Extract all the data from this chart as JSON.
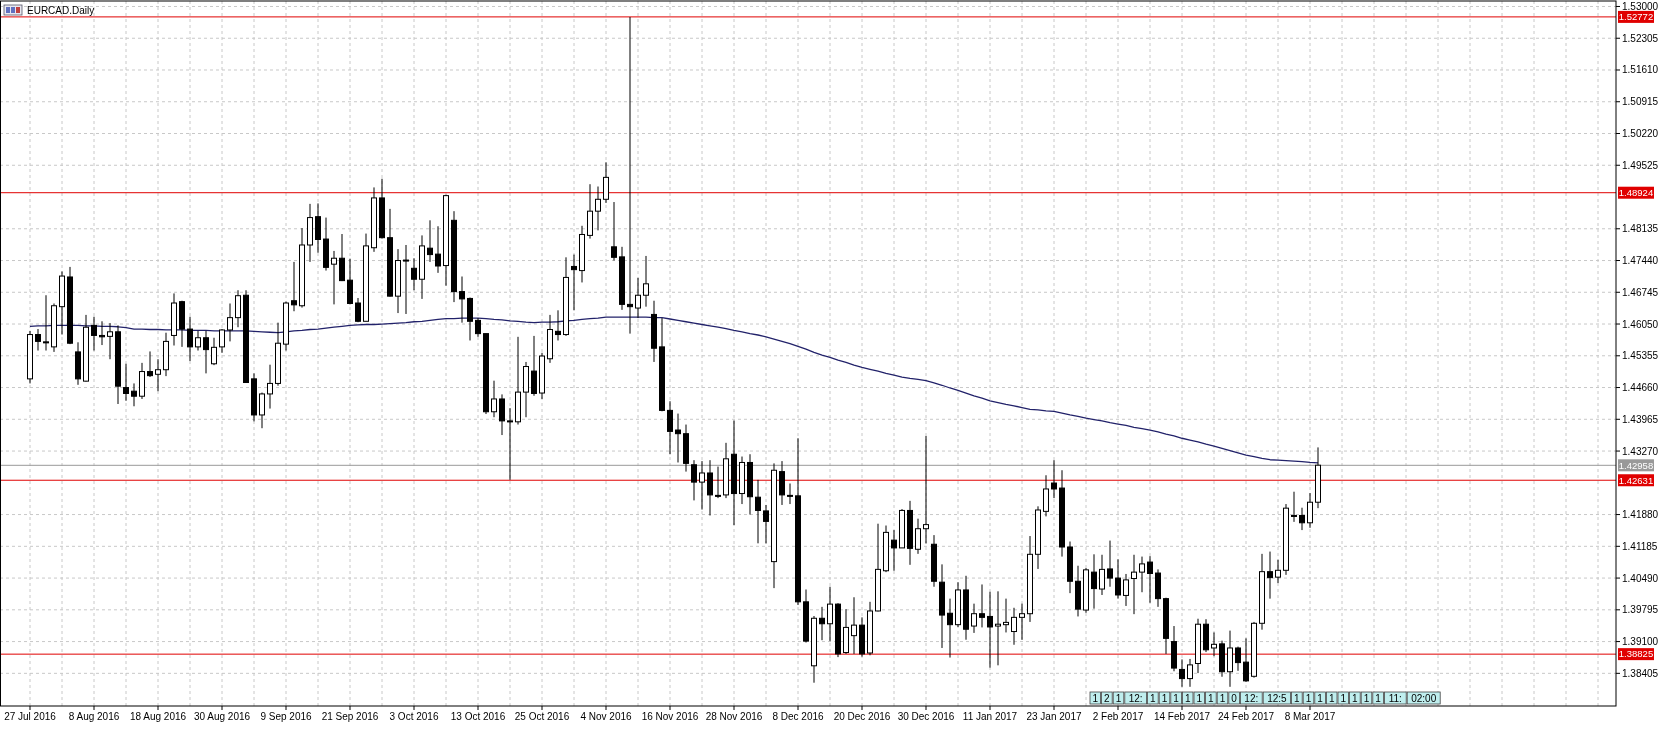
{
  "chart_data": {
    "type": "candlestick",
    "title": "EURCAD.Daily",
    "categories": [
      "27 Jul 2016",
      null,
      null,
      null,
      null,
      null,
      null,
      null,
      "8 Aug 2016",
      null,
      null,
      null,
      null,
      null,
      null,
      null,
      "18 Aug 2016",
      null,
      null,
      null,
      null,
      null,
      null,
      null,
      "30 Aug 2016",
      null,
      null,
      null,
      null,
      null,
      null,
      null,
      "9 Sep 2016",
      null,
      null,
      null,
      null,
      null,
      null,
      null,
      "21 Sep 2016",
      null,
      null,
      null,
      null,
      null,
      null,
      null,
      "3 Oct 2016",
      null,
      null,
      null,
      null,
      null,
      null,
      null,
      "13 Oct 2016",
      null,
      null,
      null,
      null,
      null,
      null,
      null,
      "25 Oct 2016",
      null,
      null,
      null,
      null,
      null,
      null,
      null,
      "4 Nov 2016",
      null,
      null,
      null,
      null,
      null,
      null,
      null,
      "16 Nov 2016",
      null,
      null,
      null,
      null,
      null,
      null,
      null,
      "28 Nov 2016",
      null,
      null,
      null,
      null,
      null,
      null,
      null,
      "8 Dec 2016",
      null,
      null,
      null,
      null,
      null,
      null,
      null,
      "20 Dec 2016",
      null,
      null,
      null,
      null,
      null,
      null,
      null,
      "30 Dec 2016",
      null,
      null,
      null,
      null,
      null,
      null,
      null,
      "11 Jan 2017",
      null,
      null,
      null,
      null,
      null,
      null,
      null,
      "23 Jan 2017",
      null,
      null,
      null,
      null,
      null,
      null,
      null,
      "2 Feb 2017",
      null,
      null,
      null,
      null,
      null,
      null,
      null,
      "14 Feb 2017",
      null,
      null,
      null,
      null,
      null,
      null,
      null,
      "24 Feb 2017",
      null,
      null,
      null,
      null,
      null,
      null,
      null,
      "8 Mar 2017",
      null
    ],
    "ohlc": [
      [
        1.4485,
        1.459,
        1.4475,
        1.4582
      ],
      [
        1.4582,
        1.4594,
        1.4547,
        1.4567
      ],
      [
        1.4566,
        1.4668,
        1.4547,
        1.4565
      ],
      [
        1.4555,
        1.465,
        1.4544,
        1.4645
      ],
      [
        1.4643,
        1.472,
        1.4582,
        1.471
      ],
      [
        1.4708,
        1.473,
        1.4561,
        1.4563
      ],
      [
        1.4544,
        1.4565,
        1.4472,
        1.4485
      ],
      [
        1.448,
        1.4625,
        1.4479,
        1.4598
      ],
      [
        1.4602,
        1.4621,
        1.4547,
        1.458
      ],
      [
        1.458,
        1.4611,
        1.4559,
        1.4577
      ],
      [
        1.4578,
        1.4607,
        1.4528,
        1.4588
      ],
      [
        1.4588,
        1.4602,
        1.443,
        1.4469
      ],
      [
        1.4466,
        1.4518,
        1.4437,
        1.4453
      ],
      [
        1.4458,
        1.4475,
        1.4425,
        1.4447
      ],
      [
        1.4447,
        1.452,
        1.4441,
        1.4501
      ],
      [
        1.4501,
        1.4545,
        1.4489,
        1.4492
      ],
      [
        1.4495,
        1.4528,
        1.4458,
        1.4505
      ],
      [
        1.4505,
        1.4586,
        1.4491,
        1.4567
      ],
      [
        1.458,
        1.4672,
        1.4558,
        1.4651
      ],
      [
        1.4654,
        1.4656,
        1.4555,
        1.4594
      ],
      [
        1.4594,
        1.4621,
        1.4524,
        1.4555
      ],
      [
        1.4555,
        1.459,
        1.4547,
        1.4575
      ],
      [
        1.4575,
        1.459,
        1.4497,
        1.4549
      ],
      [
        1.4518,
        1.4575,
        1.4515,
        1.4554
      ],
      [
        1.4555,
        1.4594,
        1.4542,
        1.4592
      ],
      [
        1.4592,
        1.465,
        1.4567,
        1.4619
      ],
      [
        1.4619,
        1.4679,
        1.4598,
        1.4667
      ],
      [
        1.4668,
        1.4679,
        1.4477,
        1.4477
      ],
      [
        1.4485,
        1.4497,
        1.4392,
        1.4406
      ],
      [
        1.4406,
        1.4455,
        1.4377,
        1.4452
      ],
      [
        1.4452,
        1.4516,
        1.442,
        1.4475
      ],
      [
        1.4475,
        1.4608,
        1.447,
        1.4563
      ],
      [
        1.4561,
        1.4654,
        1.4547,
        1.4651
      ],
      [
        1.4656,
        1.4741,
        1.4633,
        1.4647
      ],
      [
        1.4645,
        1.4815,
        1.4641,
        1.4778
      ],
      [
        1.4778,
        1.4868,
        1.4741,
        1.4838
      ],
      [
        1.484,
        1.4869,
        1.4761,
        1.479
      ],
      [
        1.4791,
        1.4838,
        1.4722,
        1.4729
      ],
      [
        1.4736,
        1.4765,
        1.4648,
        1.4749
      ],
      [
        1.4749,
        1.4802,
        1.4699,
        1.47
      ],
      [
        1.4701,
        1.4748,
        1.4648,
        1.465
      ],
      [
        1.4651,
        1.4662,
        1.4609,
        1.4611
      ],
      [
        1.4611,
        1.4803,
        1.4611,
        1.4776
      ],
      [
        1.4772,
        1.4904,
        1.4763,
        1.4881
      ],
      [
        1.4881,
        1.4923,
        1.4792,
        1.4794
      ],
      [
        1.4794,
        1.4857,
        1.4665,
        1.4666
      ],
      [
        1.4666,
        1.4769,
        1.4629,
        1.4744
      ],
      [
        1.4745,
        1.4778,
        1.4627,
        1.4744
      ],
      [
        1.4727,
        1.4749,
        1.4679,
        1.4703
      ],
      [
        1.4703,
        1.4799,
        1.466,
        1.4776
      ],
      [
        1.4771,
        1.4832,
        1.4741,
        1.4757
      ],
      [
        1.4758,
        1.4819,
        1.4717,
        1.4732
      ],
      [
        1.4733,
        1.4888,
        1.4689,
        1.4886
      ],
      [
        1.4832,
        1.4852,
        1.4653,
        1.4676
      ],
      [
        1.4676,
        1.4709,
        1.4608,
        1.466
      ],
      [
        1.4661,
        1.4663,
        1.4569,
        1.4611
      ],
      [
        1.4613,
        1.4618,
        1.4577,
        1.4584
      ],
      [
        1.4584,
        1.4584,
        1.4408,
        1.4413
      ],
      [
        1.4413,
        1.4481,
        1.4401,
        1.4441
      ],
      [
        1.4441,
        1.4451,
        1.4362,
        1.4393
      ],
      [
        1.4393,
        1.4421,
        1.4264,
        1.4392
      ],
      [
        1.4391,
        1.4577,
        1.4385,
        1.4456
      ],
      [
        1.4456,
        1.4522,
        1.4401,
        1.4512
      ],
      [
        1.4502,
        1.4579,
        1.4448,
        1.4453
      ],
      [
        1.4454,
        1.4542,
        1.4441,
        1.4535
      ],
      [
        1.4529,
        1.4625,
        1.452,
        1.4593
      ],
      [
        1.4589,
        1.4635,
        1.4569,
        1.4582
      ],
      [
        1.4582,
        1.4751,
        1.4579,
        1.4707
      ],
      [
        1.4731,
        1.4757,
        1.4635,
        1.4724
      ],
      [
        1.4722,
        1.482,
        1.4696,
        1.4801
      ],
      [
        1.4799,
        1.4911,
        1.4792,
        1.4852
      ],
      [
        1.4852,
        1.4906,
        1.481,
        1.4878
      ],
      [
        1.4878,
        1.4959,
        1.487,
        1.4926
      ],
      [
        1.4774,
        1.4872,
        1.4744,
        1.4751
      ],
      [
        1.4752,
        1.4774,
        1.4636,
        1.4648
      ],
      [
        1.4648,
        1.5277,
        1.4584,
        1.4643
      ],
      [
        1.464,
        1.4706,
        1.4618,
        1.4668
      ],
      [
        1.4668,
        1.4754,
        1.4643,
        1.4693
      ],
      [
        1.4626,
        1.4656,
        1.4522,
        1.4552
      ],
      [
        1.4555,
        1.4618,
        1.4414,
        1.4416
      ],
      [
        1.4416,
        1.4436,
        1.432,
        1.437
      ],
      [
        1.4373,
        1.4409,
        1.4302,
        1.4365
      ],
      [
        1.4365,
        1.4385,
        1.4282,
        1.43
      ],
      [
        1.4297,
        1.4307,
        1.4219,
        1.4259
      ],
      [
        1.4259,
        1.4305,
        1.4199,
        1.4279
      ],
      [
        1.4279,
        1.4307,
        1.4186,
        1.4231
      ],
      [
        1.423,
        1.4293,
        1.4224,
        1.4229
      ],
      [
        1.4231,
        1.4345,
        1.4224,
        1.431
      ],
      [
        1.432,
        1.4394,
        1.4165,
        1.4234
      ],
      [
        1.4234,
        1.4315,
        1.4211,
        1.4302
      ],
      [
        1.4302,
        1.432,
        1.4188,
        1.4227
      ],
      [
        1.4226,
        1.4264,
        1.4125,
        1.4197
      ],
      [
        1.4196,
        1.4209,
        1.4125,
        1.4173
      ],
      [
        1.4085,
        1.43,
        1.4027,
        1.4285
      ],
      [
        1.4282,
        1.4305,
        1.4209,
        1.4231
      ],
      [
        1.423,
        1.4256,
        1.4211,
        1.4229
      ],
      [
        1.4229,
        1.4355,
        1.399,
        1.3997
      ],
      [
        1.3997,
        1.4024,
        1.3908,
        1.3911
      ],
      [
        1.3857,
        1.3966,
        1.382,
        1.3961
      ],
      [
        1.3961,
        1.3986,
        1.3913,
        1.3949
      ],
      [
        1.3949,
        1.403,
        1.3911,
        1.3992
      ],
      [
        1.3992,
        1.3994,
        1.3876,
        1.3883
      ],
      [
        1.3886,
        1.3981,
        1.3883,
        1.3941
      ],
      [
        1.3923,
        1.4007,
        1.3883,
        1.3946
      ],
      [
        1.3946,
        1.3963,
        1.3877,
        1.3883
      ],
      [
        1.3885,
        1.3997,
        1.388,
        1.3977
      ],
      [
        1.3977,
        1.4168,
        1.3976,
        1.4068
      ],
      [
        1.4065,
        1.4164,
        1.4062,
        1.4149
      ],
      [
        1.4132,
        1.4154,
        1.4065,
        1.4115
      ],
      [
        1.4115,
        1.42,
        1.4115,
        1.4197
      ],
      [
        1.4197,
        1.4218,
        1.4078,
        1.4114
      ],
      [
        1.4112,
        1.4179,
        1.4102,
        1.4157
      ],
      [
        1.4157,
        1.436,
        1.4125,
        1.4166
      ],
      [
        1.4123,
        1.4143,
        1.403,
        1.4042
      ],
      [
        1.404,
        1.4079,
        1.3896,
        1.3968
      ],
      [
        1.3972,
        1.4004,
        1.3875,
        1.3947
      ],
      [
        1.3947,
        1.404,
        1.3942,
        1.4023
      ],
      [
        1.4023,
        1.4054,
        1.3914,
        1.3937
      ],
      [
        1.3944,
        1.3993,
        1.3929,
        1.3971
      ],
      [
        1.3971,
        1.4035,
        1.3941,
        1.3963
      ],
      [
        1.3965,
        1.4019,
        1.3853,
        1.3942
      ],
      [
        1.3944,
        1.402,
        1.3858,
        1.3948
      ],
      [
        1.3947,
        1.4004,
        1.393,
        1.3952
      ],
      [
        1.3932,
        1.3984,
        1.3903,
        1.3963
      ],
      [
        1.3963,
        1.3993,
        1.3914,
        1.3971
      ],
      [
        1.3971,
        1.4141,
        1.3953,
        1.4101
      ],
      [
        1.4101,
        1.4206,
        1.4069,
        1.4198
      ],
      [
        1.4195,
        1.4274,
        1.4184,
        1.4244
      ],
      [
        1.4257,
        1.4307,
        1.4224,
        1.4244
      ],
      [
        1.4246,
        1.4285,
        1.4096,
        1.4117
      ],
      [
        1.4117,
        1.4129,
        1.4016,
        1.4042
      ],
      [
        1.4042,
        1.4076,
        1.3965,
        1.3981
      ],
      [
        1.3979,
        1.4071,
        1.3973,
        1.4067
      ],
      [
        1.4062,
        1.4101,
        1.3982,
        1.4026
      ],
      [
        1.4025,
        1.41,
        1.4012,
        1.4068
      ],
      [
        1.4069,
        1.4131,
        1.403,
        1.4049
      ],
      [
        1.4049,
        1.409,
        1.4004,
        1.4012
      ],
      [
        1.4011,
        1.4058,
        1.3988,
        1.4045
      ],
      [
        1.4048,
        1.41,
        1.397,
        1.4062
      ],
      [
        1.4062,
        1.4096,
        1.4018,
        1.408
      ],
      [
        1.4084,
        1.4097,
        1.3995,
        1.4059
      ],
      [
        1.406,
        1.4068,
        1.3986,
        1.4004
      ],
      [
        1.4004,
        1.4006,
        1.3883,
        1.3917
      ],
      [
        1.391,
        1.3944,
        1.3845,
        1.3852
      ],
      [
        1.3849,
        1.3871,
        1.3811,
        1.3829
      ],
      [
        1.3829,
        1.3872,
        1.3811,
        1.3859
      ],
      [
        1.3862,
        1.396,
        1.3841,
        1.3948
      ],
      [
        1.3948,
        1.3959,
        1.3887,
        1.3892
      ],
      [
        1.3896,
        1.393,
        1.3878,
        1.3904
      ],
      [
        1.3905,
        1.3912,
        1.3833,
        1.3844
      ],
      [
        1.3844,
        1.3934,
        1.3811,
        1.3896
      ],
      [
        1.3896,
        1.3899,
        1.3846,
        1.3864
      ],
      [
        1.3865,
        1.3917,
        1.3822,
        1.3824
      ],
      [
        1.3834,
        1.3953,
        1.3831,
        1.395
      ],
      [
        1.395,
        1.4102,
        1.3936,
        1.4063
      ],
      [
        1.4063,
        1.4107,
        1.4004,
        1.405
      ],
      [
        1.4051,
        1.4089,
        1.4038,
        1.4066
      ],
      [
        1.4066,
        1.4211,
        1.4056,
        1.4202
      ],
      [
        1.4186,
        1.4238,
        1.4172,
        1.4185
      ],
      [
        1.4186,
        1.4203,
        1.4154,
        1.417
      ],
      [
        1.417,
        1.4235,
        1.4159,
        1.4215
      ],
      [
        1.4215,
        1.4335,
        1.4202,
        1.4296
      ]
    ],
    "series": [
      {
        "type": "line",
        "color": "#22226a",
        "values": [
          1.46,
          1.4601,
          1.4601,
          1.4602,
          1.4602,
          1.4602,
          1.4602,
          1.4601,
          1.4601,
          1.46,
          1.46,
          1.4599,
          1.4597,
          1.4594,
          1.4594,
          1.4593,
          1.4593,
          1.4592,
          1.4592,
          1.4592,
          1.4591,
          1.4591,
          1.4591,
          1.459,
          1.459,
          1.459,
          1.459,
          1.459,
          1.4589,
          1.4588,
          1.4587,
          1.4586,
          1.4588,
          1.459,
          1.4591,
          1.4593,
          1.4594,
          1.4596,
          1.4598,
          1.46,
          1.4602,
          1.4603,
          1.4604,
          1.4604,
          1.4605,
          1.4606,
          1.4607,
          1.4608,
          1.461,
          1.4611,
          1.4613,
          1.4615,
          1.4617,
          1.4617,
          1.4618,
          1.4618,
          1.4618,
          1.4617,
          1.4615,
          1.4614,
          1.4612,
          1.4611,
          1.4609,
          1.4608,
          1.4609,
          1.4609,
          1.461,
          1.4612,
          1.4613,
          1.4615,
          1.4617,
          1.4618,
          1.462,
          1.462,
          1.462,
          1.462,
          1.462,
          1.462,
          1.4619,
          1.4619,
          1.4616,
          1.4613,
          1.461,
          1.4607,
          1.4604,
          1.4601,
          1.4598,
          1.4595,
          1.4591,
          1.4588,
          1.4584,
          1.4581,
          1.4577,
          1.4572,
          1.4567,
          1.4562,
          1.4556,
          1.455,
          1.4543,
          1.4537,
          1.4532,
          1.4526,
          1.4521,
          1.4515,
          1.451,
          1.4506,
          1.4502,
          1.4497,
          1.4493,
          1.4489,
          1.4486,
          1.4484,
          1.4481,
          1.4476,
          1.4471,
          1.4465,
          1.446,
          1.4454,
          1.4448,
          1.4443,
          1.4437,
          1.4433,
          1.4429,
          1.4426,
          1.4422,
          1.4418,
          1.4417,
          1.4415,
          1.4414,
          1.441,
          1.4406,
          1.4403,
          1.4399,
          1.4396,
          1.4393,
          1.4389,
          1.4386,
          1.4383,
          1.4379,
          1.4376,
          1.4373,
          1.4369,
          1.4364,
          1.436,
          1.4355,
          1.4351,
          1.4347,
          1.4342,
          1.4338,
          1.4333,
          1.4328,
          1.4323,
          1.4318,
          1.4315,
          1.4311,
          1.4308,
          1.4307,
          1.4306,
          1.4305,
          1.4304,
          1.4302,
          1.4301
        ]
      }
    ],
    "ylim": [
      1.3769,
      1.5312
    ],
    "yticks": [
      {
        "value": 1.53,
        "label": "1.53000"
      },
      {
        "value": 1.52305,
        "label": "1.52305"
      },
      {
        "value": 1.5161,
        "label": "1.51610"
      },
      {
        "value": 1.50915,
        "label": "1.50915"
      },
      {
        "value": 1.5022,
        "label": "1.50220"
      },
      {
        "value": 1.49525,
        "label": "1.49525"
      },
      {
        "value": 1.48135,
        "label": "1.48135"
      },
      {
        "value": 1.4744,
        "label": "1.47440"
      },
      {
        "value": 1.46745,
        "label": "1.46745"
      },
      {
        "value": 1.4605,
        "label": "1.46050"
      },
      {
        "value": 1.45355,
        "label": "1.45355"
      },
      {
        "value": 1.4466,
        "label": "1.44660"
      },
      {
        "value": 1.43965,
        "label": "1.43965"
      },
      {
        "value": 1.4327,
        "label": "1.43270"
      },
      {
        "value": 1.4188,
        "label": "1.41880"
      },
      {
        "value": 1.41185,
        "label": "1.41185"
      },
      {
        "value": 1.4049,
        "label": "1.40490"
      },
      {
        "value": 1.39795,
        "label": "1.39795"
      },
      {
        "value": 1.391,
        "label": "1.39100"
      },
      {
        "value": 1.38405,
        "label": "1.38405"
      }
    ],
    "ref_lines": [
      {
        "axis": "y",
        "value": 1.52772,
        "label": "1.52772",
        "color": "#e00000"
      },
      {
        "axis": "y",
        "value": 1.48924,
        "label": "1.48924",
        "color": "#e00000"
      },
      {
        "axis": "y",
        "value": 1.42958,
        "label": "1.42958",
        "color": "#999999"
      },
      {
        "axis": "y",
        "value": 1.42631,
        "label": "1.42631",
        "color": "#e00000"
      },
      {
        "axis": "y",
        "value": 1.38825,
        "label": "1.38825",
        "color": "#e00000"
      }
    ],
    "annotations": [
      "1",
      "2",
      "1",
      "12:",
      "1",
      "1",
      "1",
      "1",
      "1",
      "1",
      "1",
      "0",
      "12:",
      "12:5",
      "1",
      "1",
      "1",
      "1",
      "1",
      "1",
      "1",
      "1",
      "11:",
      "02:00"
    ],
    "grid": true
  }
}
